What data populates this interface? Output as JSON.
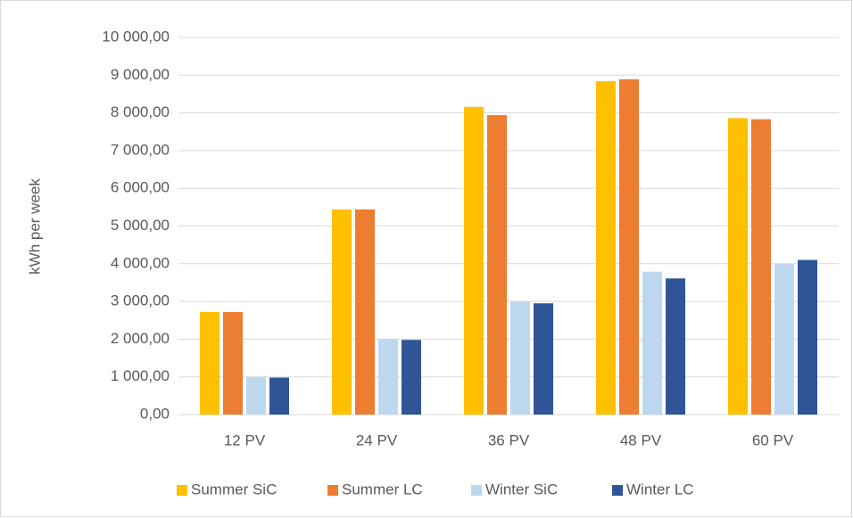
{
  "chart_data": {
    "type": "bar",
    "y_label": "kWh per week",
    "categories": [
      "12 PV",
      "24 PV",
      "36 PV",
      "48 PV",
      "60 PV"
    ],
    "series": [
      {
        "name": "Summer SiC",
        "color": "#ffc000",
        "values": [
          2720,
          5440,
          8160,
          8840,
          7860
        ]
      },
      {
        "name": "Summer LC",
        "color": "#ed7d31",
        "values": [
          2720,
          5440,
          7940,
          8890,
          7830
        ]
      },
      {
        "name": "Winter SiC",
        "color": "#bdd7ee",
        "values": [
          1000,
          2000,
          2990,
          3790,
          4000
        ]
      },
      {
        "name": "Winter LC",
        "color": "#2f5597",
        "values": [
          980,
          1980,
          2950,
          3610,
          4100
        ]
      }
    ],
    "ylim": [
      0,
      10000
    ],
    "yticks": [
      {
        "value": 0,
        "label": "0,00"
      },
      {
        "value": 1000,
        "label": "1 000,00"
      },
      {
        "value": 2000,
        "label": "2 000,00"
      },
      {
        "value": 3000,
        "label": "3 000,00"
      },
      {
        "value": 4000,
        "label": "4 000,00"
      },
      {
        "value": 5000,
        "label": "5 000,00"
      },
      {
        "value": 6000,
        "label": "6 000,00"
      },
      {
        "value": 7000,
        "label": "7 000,00"
      },
      {
        "value": 8000,
        "label": "8 000,00"
      },
      {
        "value": 9000,
        "label": "9 000,00"
      },
      {
        "value": 10000,
        "label": "10 000,00"
      }
    ],
    "grid": true,
    "legend": "bottom"
  }
}
